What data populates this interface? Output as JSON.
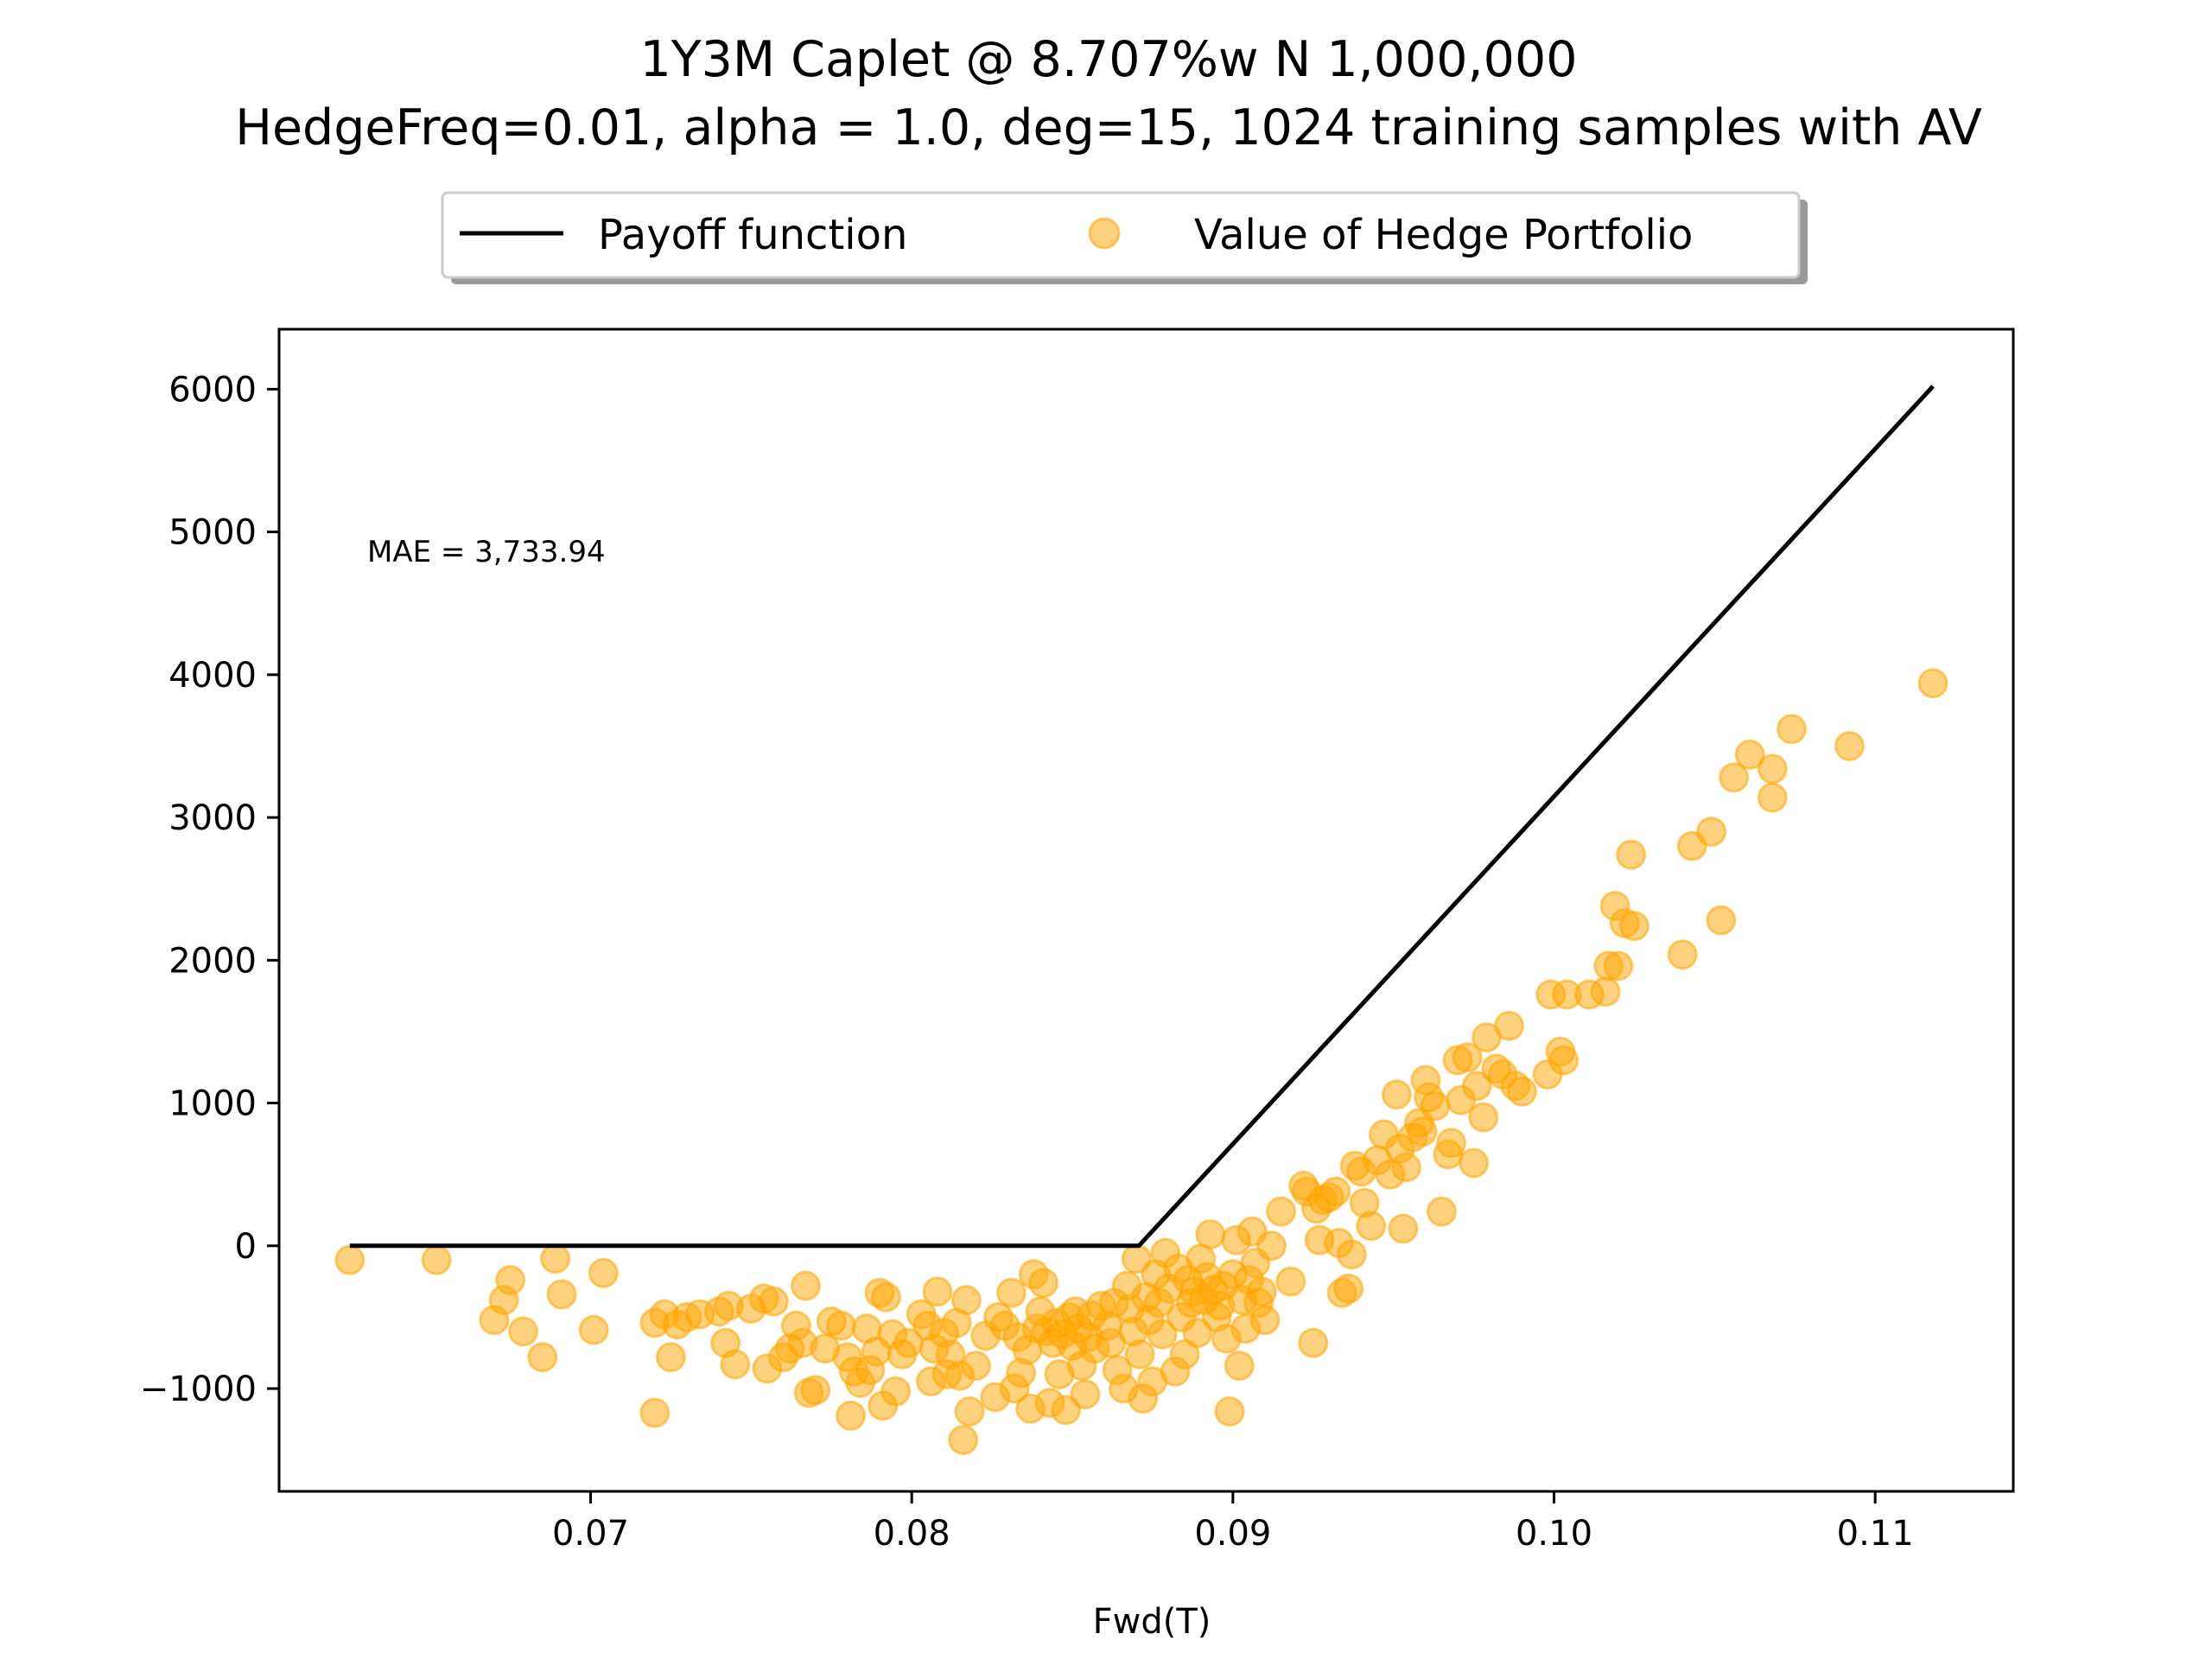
{
  "chart_data": {
    "type": "scatter",
    "title_line1": "1Y3M Caplet @ 8.707%w N 1,000,000",
    "title_line2": "HedgeFreq=0.01, alpha = 1.0, deg=15, 1024 training samples with AV",
    "xlabel": "Fwd(T)",
    "ylabel": "",
    "xlim": [
      0.0603,
      0.1143
    ],
    "ylim": [
      -1720,
      6420
    ],
    "xticks": [
      0.07,
      0.08,
      0.09,
      0.1,
      0.11
    ],
    "xtick_labels": [
      "0.07",
      "0.08",
      "0.09",
      "0.10",
      "0.11"
    ],
    "yticks": [
      -1000,
      0,
      1000,
      2000,
      3000,
      4000,
      5000,
      6000
    ],
    "ytick_labels": [
      "−1000",
      "0",
      "1000",
      "2000",
      "3000",
      "4000",
      "5000",
      "6000"
    ],
    "grid": false,
    "legend_position": "top-center",
    "annotation": "MAE = 3,733.94",
    "colors": {
      "payoff": "#000000",
      "hedge": "#ffa500"
    },
    "series": [
      {
        "name": "Payoff function",
        "kind": "line",
        "x": [
          0.0625,
          0.08707,
          0.1118
        ],
        "y": [
          0,
          0,
          6020
        ]
      },
      {
        "name": "Value of Hedge Portfolio",
        "kind": "scatter",
        "points": [
          [
            0.0625,
            -100
          ],
          [
            0.0652,
            -100
          ],
          [
            0.067,
            -520
          ],
          [
            0.0673,
            -380
          ],
          [
            0.0675,
            -240
          ],
          [
            0.0679,
            -600
          ],
          [
            0.0685,
            -780
          ],
          [
            0.0689,
            -90
          ],
          [
            0.0691,
            -340
          ],
          [
            0.0701,
            -590
          ],
          [
            0.0704,
            -190
          ],
          [
            0.072,
            -1170
          ],
          [
            0.072,
            -540
          ],
          [
            0.0723,
            -480
          ],
          [
            0.0725,
            -780
          ],
          [
            0.0727,
            -550
          ],
          [
            0.073,
            -500
          ],
          [
            0.0734,
            -480
          ],
          [
            0.074,
            -460
          ],
          [
            0.0742,
            -680
          ],
          [
            0.0743,
            -420
          ],
          [
            0.0745,
            -830
          ],
          [
            0.075,
            -440
          ],
          [
            0.0754,
            -370
          ],
          [
            0.0755,
            -860
          ],
          [
            0.0757,
            -390
          ],
          [
            0.076,
            -780
          ],
          [
            0.0762,
            -720
          ],
          [
            0.0764,
            -560
          ],
          [
            0.0766,
            -680
          ],
          [
            0.0767,
            -280
          ],
          [
            0.0768,
            -1030
          ],
          [
            0.077,
            -1010
          ],
          [
            0.0773,
            -720
          ],
          [
            0.0775,
            -530
          ],
          [
            0.0778,
            -560
          ],
          [
            0.078,
            -780
          ],
          [
            0.0781,
            -1190
          ],
          [
            0.0782,
            -880
          ],
          [
            0.0784,
            -960
          ],
          [
            0.0786,
            -580
          ],
          [
            0.0787,
            -870
          ],
          [
            0.0789,
            -740
          ],
          [
            0.079,
            -330
          ],
          [
            0.0791,
            -1120
          ],
          [
            0.0792,
            -360
          ],
          [
            0.0794,
            -620
          ],
          [
            0.0795,
            -1020
          ],
          [
            0.0797,
            -760
          ],
          [
            0.0799,
            -680
          ],
          [
            0.0803,
            -480
          ],
          [
            0.0805,
            -560
          ],
          [
            0.0806,
            -950
          ],
          [
            0.0807,
            -720
          ],
          [
            0.0808,
            -320
          ],
          [
            0.081,
            -610
          ],
          [
            0.0811,
            -900
          ],
          [
            0.0812,
            -760
          ],
          [
            0.0814,
            -540
          ],
          [
            0.0815,
            -910
          ],
          [
            0.0816,
            -1360
          ],
          [
            0.0817,
            -380
          ],
          [
            0.0818,
            -1160
          ],
          [
            0.082,
            -840
          ],
          [
            0.0823,
            -630
          ],
          [
            0.0826,
            -1060
          ],
          [
            0.0827,
            -500
          ],
          [
            0.0829,
            -560
          ],
          [
            0.0831,
            -330
          ],
          [
            0.0832,
            -1000
          ],
          [
            0.0833,
            -640
          ],
          [
            0.0834,
            -890
          ],
          [
            0.0836,
            -730
          ],
          [
            0.0837,
            -1140
          ],
          [
            0.0838,
            -200
          ],
          [
            0.0839,
            -580
          ],
          [
            0.084,
            -460
          ],
          [
            0.0841,
            -260
          ],
          [
            0.0842,
            -600
          ],
          [
            0.0843,
            -1100
          ],
          [
            0.0844,
            -680
          ],
          [
            0.0845,
            -540
          ],
          [
            0.0846,
            -900
          ],
          [
            0.0847,
            -620
          ],
          [
            0.0848,
            -1150
          ],
          [
            0.0849,
            -500
          ],
          [
            0.085,
            -700
          ],
          [
            0.0851,
            -460
          ],
          [
            0.0852,
            -580
          ],
          [
            0.0853,
            -840
          ],
          [
            0.0854,
            -1040
          ],
          [
            0.0855,
            -640
          ],
          [
            0.0856,
            -490
          ],
          [
            0.0857,
            -720
          ],
          [
            0.0859,
            -420
          ],
          [
            0.0861,
            -560
          ],
          [
            0.0862,
            -680
          ],
          [
            0.0863,
            -400
          ],
          [
            0.0864,
            -870
          ],
          [
            0.0866,
            -1000
          ],
          [
            0.0867,
            -280
          ],
          [
            0.0868,
            -440
          ],
          [
            0.0869,
            -600
          ],
          [
            0.087,
            -90
          ],
          [
            0.0871,
            -760
          ],
          [
            0.0872,
            -1070
          ],
          [
            0.0873,
            -360
          ],
          [
            0.0874,
            -520
          ],
          [
            0.0875,
            -950
          ],
          [
            0.0876,
            -200
          ],
          [
            0.0877,
            -400
          ],
          [
            0.0878,
            -620
          ],
          [
            0.0879,
            -50
          ],
          [
            0.088,
            -300
          ],
          [
            0.0882,
            -880
          ],
          [
            0.0883,
            -160
          ],
          [
            0.0884,
            -500
          ],
          [
            0.0885,
            -760
          ],
          [
            0.0886,
            -240
          ],
          [
            0.0887,
            -400
          ],
          [
            0.0888,
            -320
          ],
          [
            0.0889,
            -610
          ],
          [
            0.089,
            -90
          ],
          [
            0.0891,
            -380
          ],
          [
            0.0892,
            -220
          ],
          [
            0.0893,
            80
          ],
          [
            0.0894,
            -310
          ],
          [
            0.0895,
            -500
          ],
          [
            0.0896,
            -420
          ],
          [
            0.0897,
            -280
          ],
          [
            0.0898,
            -650
          ],
          [
            0.0899,
            -1160
          ],
          [
            0.09,
            -200
          ],
          [
            0.0901,
            40
          ],
          [
            0.0902,
            -840
          ],
          [
            0.0903,
            -380
          ],
          [
            0.0904,
            -580
          ],
          [
            0.0905,
            -240
          ],
          [
            0.0906,
            100
          ],
          [
            0.0907,
            -120
          ],
          [
            0.0908,
            -400
          ],
          [
            0.0909,
            -320
          ],
          [
            0.091,
            -520
          ],
          [
            0.0912,
            0
          ],
          [
            0.0915,
            240
          ],
          [
            0.0918,
            -250
          ],
          [
            0.0922,
            420
          ],
          [
            0.0923,
            380
          ],
          [
            0.0925,
            -680
          ],
          [
            0.0926,
            260
          ],
          [
            0.0927,
            40
          ],
          [
            0.0928,
            320
          ],
          [
            0.093,
            340
          ],
          [
            0.0932,
            380
          ],
          [
            0.0933,
            20
          ],
          [
            0.0934,
            -330
          ],
          [
            0.0936,
            -300
          ],
          [
            0.0937,
            -60
          ],
          [
            0.0938,
            560
          ],
          [
            0.094,
            520
          ],
          [
            0.0941,
            300
          ],
          [
            0.0943,
            140
          ],
          [
            0.0945,
            600
          ],
          [
            0.0947,
            780
          ],
          [
            0.0949,
            500
          ],
          [
            0.0951,
            1060
          ],
          [
            0.0952,
            680
          ],
          [
            0.0953,
            120
          ],
          [
            0.0954,
            550
          ],
          [
            0.0956,
            760
          ],
          [
            0.0958,
            860
          ],
          [
            0.0959,
            800
          ],
          [
            0.096,
            1160
          ],
          [
            0.0961,
            1040
          ],
          [
            0.0963,
            980
          ],
          [
            0.0965,
            240
          ],
          [
            0.0967,
            640
          ],
          [
            0.0968,
            720
          ],
          [
            0.097,
            1300
          ],
          [
            0.0971,
            1020
          ],
          [
            0.0973,
            1320
          ],
          [
            0.0975,
            580
          ],
          [
            0.0976,
            1120
          ],
          [
            0.0978,
            900
          ],
          [
            0.0979,
            1460
          ],
          [
            0.0982,
            1240
          ],
          [
            0.0984,
            1200
          ],
          [
            0.0986,
            1540
          ],
          [
            0.0988,
            1120
          ],
          [
            0.099,
            1080
          ],
          [
            0.0998,
            1200
          ],
          [
            0.0999,
            1760
          ],
          [
            0.1002,
            1360
          ],
          [
            0.1003,
            1300
          ],
          [
            0.1004,
            1760
          ],
          [
            0.1011,
            1760
          ],
          [
            0.1016,
            1780
          ],
          [
            0.1017,
            1960
          ],
          [
            0.1019,
            2380
          ],
          [
            0.102,
            1960
          ],
          [
            0.1022,
            2260
          ],
          [
            0.1024,
            2740
          ],
          [
            0.1025,
            2240
          ],
          [
            0.104,
            2040
          ],
          [
            0.1043,
            2800
          ],
          [
            0.1049,
            2900
          ],
          [
            0.1052,
            2280
          ],
          [
            0.1056,
            3280
          ],
          [
            0.1061,
            3440
          ],
          [
            0.1068,
            3340
          ],
          [
            0.1068,
            3140
          ],
          [
            0.1074,
            3620
          ],
          [
            0.1092,
            3500
          ],
          [
            0.1118,
            3940
          ]
        ]
      }
    ]
  }
}
